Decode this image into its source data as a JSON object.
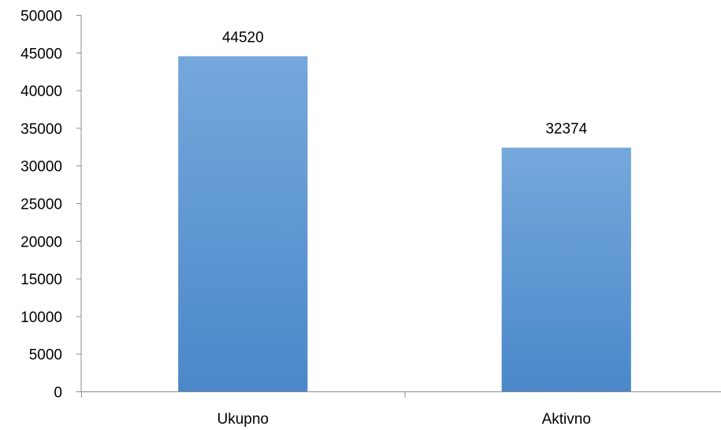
{
  "chart_data": {
    "type": "bar",
    "categories": [
      "Ukupno",
      "Aktivno"
    ],
    "values": [
      44520,
      32374
    ],
    "data_labels": [
      "44520",
      "32374"
    ],
    "ylim": [
      0,
      50000
    ],
    "yticks": [
      "0",
      "5000",
      "10000",
      "15000",
      "20000",
      "25000",
      "30000",
      "35000",
      "40000",
      "45000",
      "50000"
    ],
    "title": "",
    "xlabel": "",
    "ylabel": "",
    "grid": false,
    "legend": "none",
    "colors": {
      "bar_top": "#75a8dc",
      "bar_bottom": "#4a88c9",
      "axis": "#8c8c8c"
    }
  }
}
